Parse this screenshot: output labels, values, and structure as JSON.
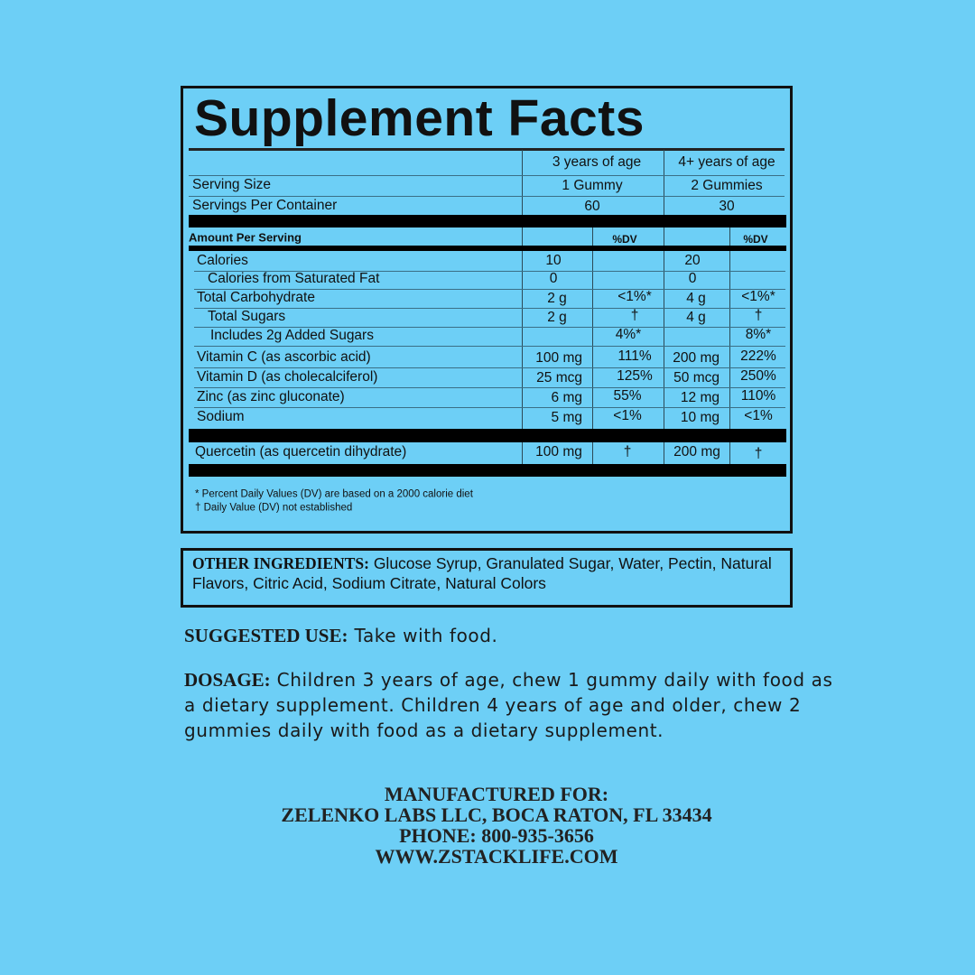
{
  "facts": {
    "title": "Supplement Facts",
    "col_headers": [
      "3 years of age",
      "4+ years of age"
    ],
    "serving_size": {
      "label": "Serving Size",
      "values": [
        "1 Gummy",
        "2 Gummies"
      ]
    },
    "servings_per_container": {
      "label": "Servings Per Container",
      "values": [
        "60",
        "30"
      ]
    },
    "amount_per_serving": "Amount Per Serving",
    "dv_label": "%DV",
    "rows": [
      {
        "label": "Calories",
        "indent": 0,
        "a1": "10",
        "d1": "",
        "a2": "20",
        "d2": ""
      },
      {
        "label": "Calories from Saturated Fat",
        "indent": 1,
        "a1": "0",
        "d1": "",
        "a2": "0",
        "d2": ""
      },
      {
        "label": "Total Carbohydrate",
        "indent": 0,
        "a1": "2 g",
        "d1": "<1%*",
        "a2": "4 g",
        "d2": "<1%*"
      },
      {
        "label": "Total Sugars",
        "indent": 1,
        "a1": "2 g",
        "d1": "†",
        "a2": "4 g",
        "d2": "†"
      },
      {
        "label": "Includes 2g Added Sugars",
        "indent": 1,
        "a1": "",
        "d1": "4%*",
        "a2": "",
        "d2": "8%*"
      },
      {
        "label": "Vitamin C (as ascorbic acid)",
        "indent": 0,
        "a1": "100 mg",
        "d1": "111%",
        "a2": "200 mg",
        "d2": "222%"
      },
      {
        "label": "Vitamin D (as cholecalciferol)",
        "indent": 0,
        "a1": "25 mcg",
        "d1": "125%",
        "a2": "50 mcg",
        "d2": "250%"
      },
      {
        "label": "Zinc (as zinc gluconate)",
        "indent": 0,
        "a1": "6 mg",
        "d1": "55%",
        "a2": "12 mg",
        "d2": "110%"
      },
      {
        "label": "Sodium",
        "indent": 0,
        "a1": "5 mg",
        "d1": "<1%",
        "a2": "10 mg",
        "d2": "<1%"
      }
    ],
    "quercetin": {
      "label": "Quercetin (as quercetin dihydrate)",
      "a1": "100 mg",
      "d1": "†",
      "a2": "200 mg",
      "d2": "†"
    },
    "footnotes": [
      "* Percent Daily Values (DV) are based on a 2000 calorie diet",
      "† Daily Value (DV) not established"
    ]
  },
  "ingredients": {
    "label": "OTHER INGREDIENTS:",
    "text": " Glucose Syrup, Granulated Sugar, Water, Pectin, Natural Flavors, Citric Acid, Sodium Citrate, Natural Colors"
  },
  "suggested_use": {
    "label": "SUGGESTED USE:",
    "text": " Take with food."
  },
  "dosage": {
    "label": "DOSAGE:",
    "lines": [
      " Children 3 years of age, chew 1 gummy daily with food as",
      "a dietary supplement. Children 4 years of age and older, chew 2",
      "gummies daily with food as a dietary supplement."
    ]
  },
  "manufacturer": [
    "MANUFACTURED FOR:",
    "ZELENKO LABS LLC, BOCA RATON, FL 33434",
    "PHONE: 800-935-3656",
    "WWW.ZSTACKLIFE.COM"
  ],
  "colors": {
    "background": "#6dcff6",
    "text": "#111111"
  }
}
